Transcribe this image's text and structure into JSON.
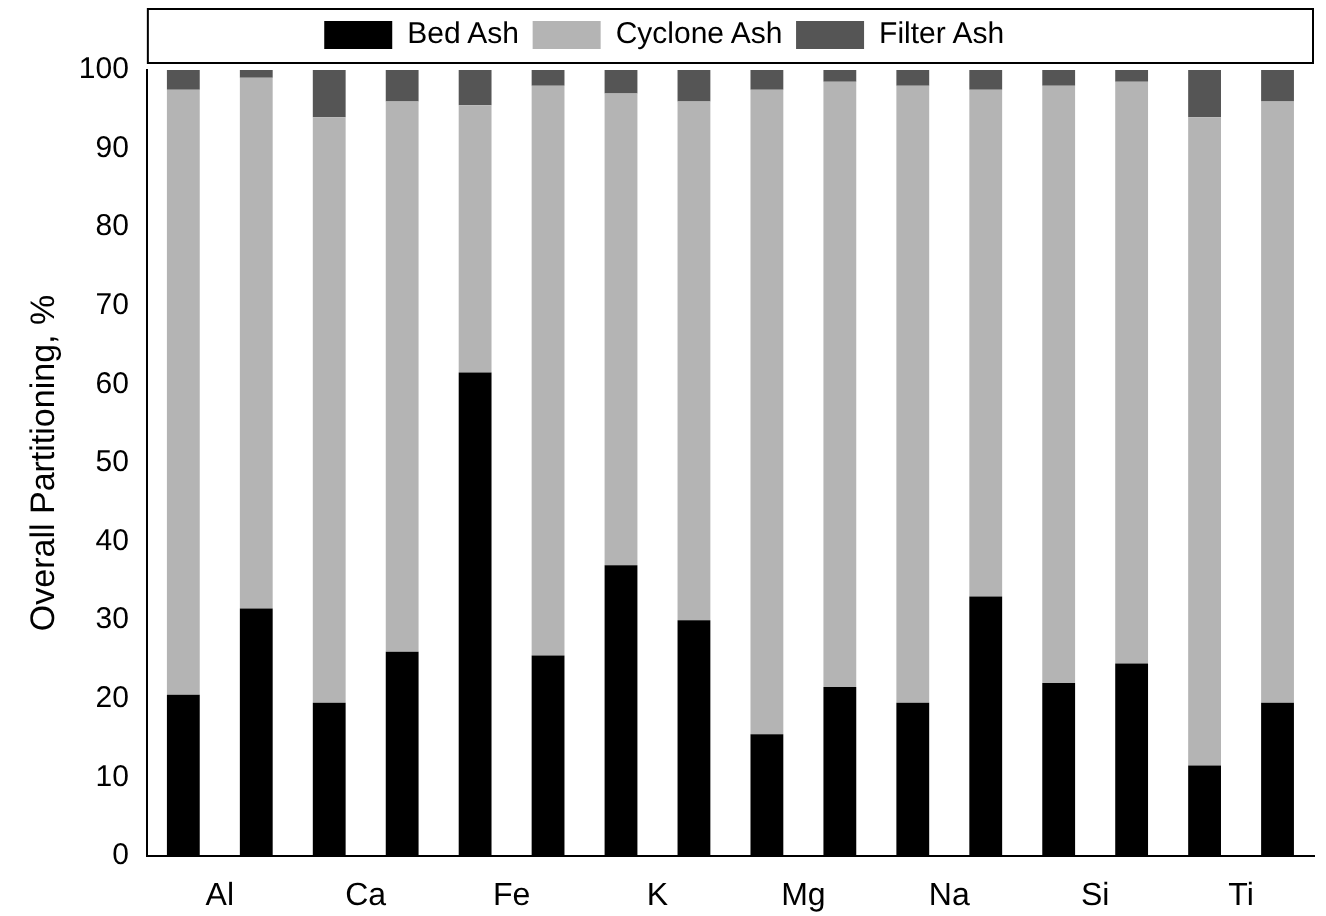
{
  "chart_data": {
    "type": "bar",
    "stacked": true,
    "ylabel": "Overall Partitioning, %",
    "categories": [
      "Al",
      null,
      "Ca",
      null,
      "Fe",
      null,
      "K",
      null,
      "Mg",
      null,
      "Na",
      null,
      "Si",
      null,
      "Ti",
      null
    ],
    "series": [
      {
        "name": "Bed Ash",
        "color": "#000000",
        "values": [
          20.5,
          31.5,
          19.5,
          26,
          61.5,
          25.5,
          37,
          30,
          15.5,
          21.5,
          19.5,
          33,
          22,
          24.5,
          11.5,
          19.5
        ]
      },
      {
        "name": "Cyclone Ash",
        "color": "#b4b4b4",
        "values": [
          77,
          67.5,
          74.5,
          70,
          34,
          72.5,
          60,
          66,
          82,
          77,
          78.5,
          64.5,
          76,
          74,
          82.5,
          76.5
        ]
      },
      {
        "name": "Filter Ash",
        "color": "#555555",
        "values": [
          2.5,
          1,
          6,
          4,
          4.5,
          2,
          3,
          4,
          2.5,
          1.5,
          2,
          2.5,
          2,
          1.5,
          6,
          4
        ]
      }
    ],
    "ylim": [
      0,
      100
    ],
    "yticks": [
      0,
      10,
      20,
      30,
      40,
      50,
      60,
      70,
      80,
      90,
      100
    ],
    "grid": false,
    "legend": "top"
  }
}
